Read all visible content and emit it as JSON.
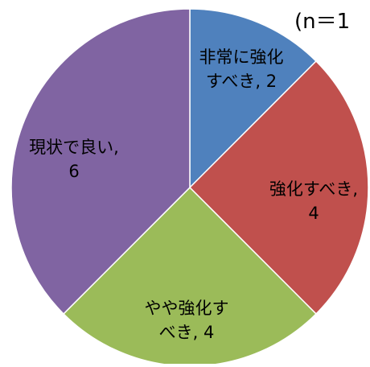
{
  "chart_data": {
    "type": "pie",
    "sample_label": "(n＝1",
    "slices": [
      {
        "label": "非常に強化すべき",
        "value": 2,
        "color": "#4f81bd",
        "lines": [
          "非常に強化",
          "すべき, 2"
        ]
      },
      {
        "label": "強化すべき",
        "value": 4,
        "color": "#c0504d",
        "lines": [
          "強化すべき,",
          "4"
        ]
      },
      {
        "label": "やや強化すべき",
        "value": 4,
        "color": "#9bbb59",
        "lines": [
          "やや強化す",
          "べき, 4"
        ]
      },
      {
        "label": "現状で良い",
        "value": 6,
        "color": "#8064a2",
        "lines": [
          "現状で良い,",
          "6"
        ]
      }
    ]
  }
}
